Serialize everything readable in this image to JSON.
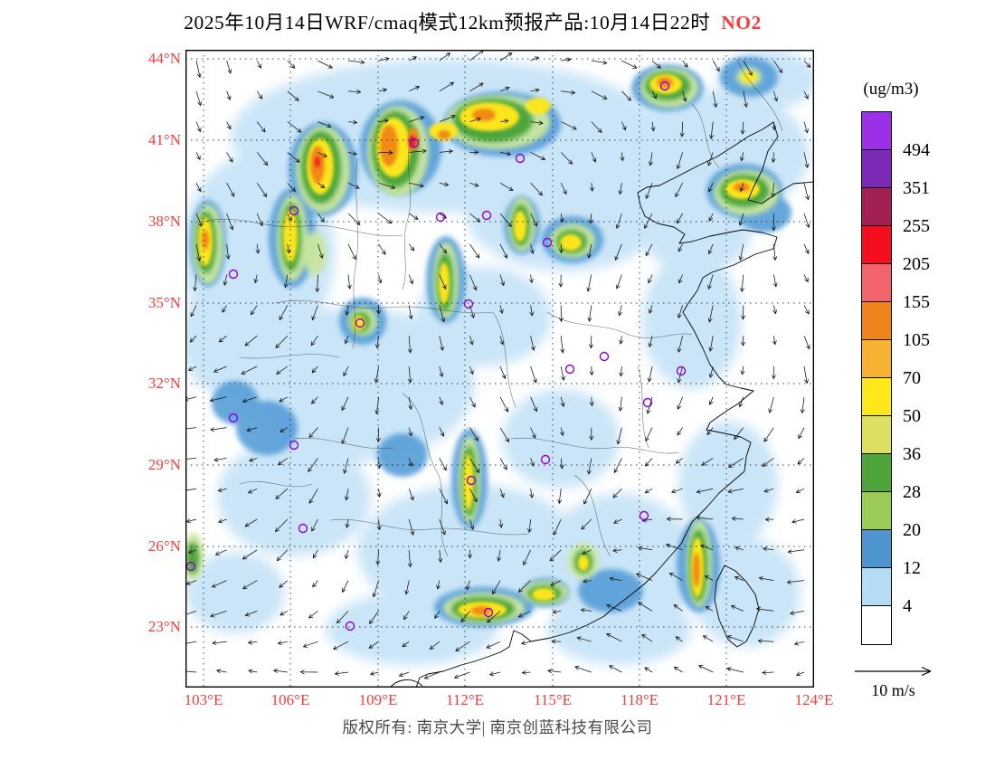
{
  "title": {
    "text": "2025年10月14日WRF/cmaq模式12km预报产品:10月14日22时",
    "species": "NO2"
  },
  "axes": {
    "lat_ticks": [
      "44°N",
      "41°N",
      "38°N",
      "35°N",
      "32°N",
      "29°N",
      "26°N",
      "23°N"
    ],
    "lon_ticks": [
      "103°E",
      "106°E",
      "109°E",
      "112°E",
      "115°E",
      "118°E",
      "121°E",
      "124°E"
    ]
  },
  "legend": {
    "units": "(ug/m3)",
    "levels": [
      "494",
      "351",
      "255",
      "205",
      "155",
      "105",
      "70",
      "50",
      "36",
      "28",
      "20",
      "12",
      "4"
    ],
    "colors": [
      "#9B30E8",
      "#7B2AB8",
      "#A32055",
      "#F50F1E",
      "#F1646C",
      "#F0821C",
      "#F8B233",
      "#FFE81A",
      "#DCE060",
      "#4DA53C",
      "#9CCB58",
      "#4E94CE",
      "#B4DCF5",
      "#FFFFFF"
    ]
  },
  "wind": {
    "reference_label": "10 m/s"
  },
  "markers": {
    "color": "#9400D3"
  },
  "footer": {
    "copyright_text": "版权所有: 南京大学| 南京创蓝科技有限公司"
  }
}
